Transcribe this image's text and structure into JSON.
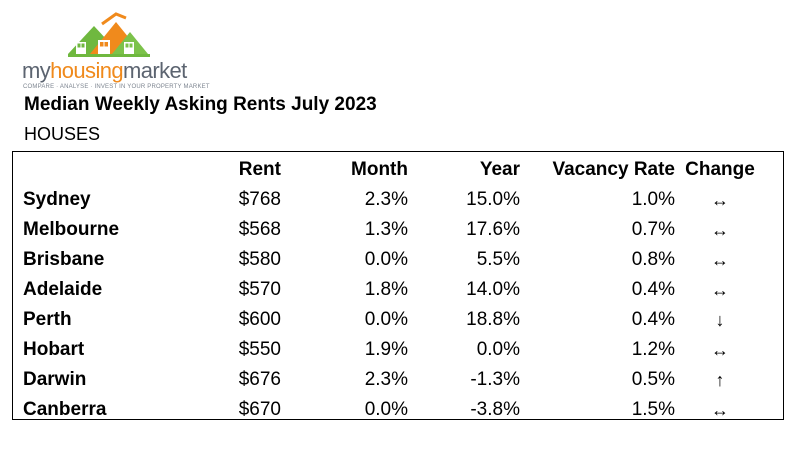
{
  "logo": {
    "word_part1": "my",
    "word_part2": "housing",
    "word_part3": "market",
    "tagline": "COMPARE · ANALYSE · INVEST IN YOUR PROPERTY MARKET"
  },
  "title": "Median Weekly Asking Rents July 2023",
  "subtitle": "HOUSES",
  "table": {
    "headers": [
      "Rent",
      "Month",
      "Year",
      "Vacancy Rate",
      "Change"
    ],
    "rows": [
      {
        "city": "Sydney",
        "rent": "$768",
        "month": "2.3%",
        "year": "15.0%",
        "vacancy": "1.0%",
        "change": "↔"
      },
      {
        "city": "Melbourne",
        "rent": "$568",
        "month": "1.3%",
        "year": "17.6%",
        "vacancy": "0.7%",
        "change": "↔"
      },
      {
        "city": "Brisbane",
        "rent": "$580",
        "month": "0.0%",
        "year": "5.5%",
        "vacancy": "0.8%",
        "change": "↔"
      },
      {
        "city": "Adelaide",
        "rent": "$570",
        "month": "1.8%",
        "year": "14.0%",
        "vacancy": "0.4%",
        "change": "↔"
      },
      {
        "city": "Perth",
        "rent": "$600",
        "month": "0.0%",
        "year": "18.8%",
        "vacancy": "0.4%",
        "change": "↓"
      },
      {
        "city": "Hobart",
        "rent": "$550",
        "month": "1.9%",
        "year": "0.0%",
        "vacancy": "1.2%",
        "change": "↔"
      },
      {
        "city": "Darwin",
        "rent": "$676",
        "month": "2.3%",
        "year": "-1.3%",
        "vacancy": "0.5%",
        "change": "↑"
      },
      {
        "city": "Canberra",
        "rent": "$670",
        "month": "0.0%",
        "year": "-3.8%",
        "vacancy": "1.5%",
        "change": "↔"
      }
    ]
  },
  "colors": {
    "logo_green": "#6fb83f",
    "logo_orange": "#f08a1c",
    "logo_grey": "#5c6470"
  }
}
